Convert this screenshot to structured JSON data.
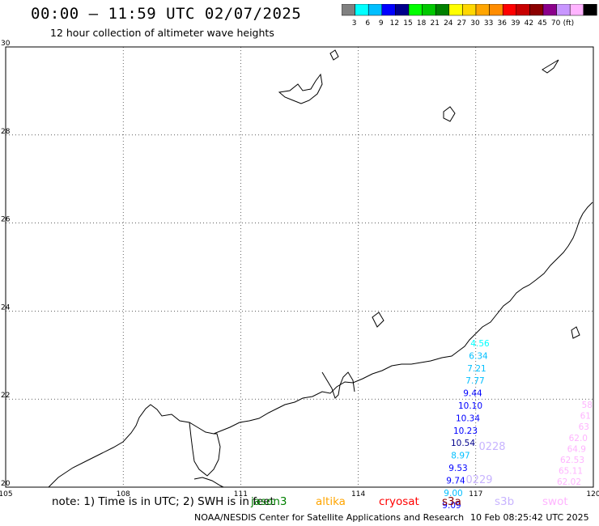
{
  "header": {
    "title": "00:00 – 11:59 UTC 02/07/2025",
    "subtitle": "12 hour collection of altimeter wave heights"
  },
  "colorbar": {
    "unit": "(ft)",
    "colors": [
      "#808080",
      "#00ffff",
      "#00bfff",
      "#0000ff",
      "#00008b",
      "#00ff00",
      "#00c800",
      "#008000",
      "#ffff00",
      "#ffd700",
      "#ffa500",
      "#ff8c00",
      "#ff0000",
      "#c80000",
      "#8b0000",
      "#8b008b",
      "#c896ff",
      "#ffb4ff",
      "#000000"
    ],
    "ticks": [
      "3",
      "6",
      "9",
      "12",
      "15",
      "18",
      "21",
      "24",
      "27",
      "30",
      "33",
      "36",
      "39",
      "42",
      "45",
      "70"
    ]
  },
  "map": {
    "x_ticks": [
      "105",
      "108",
      "111",
      "114",
      "117",
      "120"
    ],
    "y_ticks": [
      "30",
      "28",
      "26",
      "24",
      "22",
      "20"
    ],
    "lon_range": [
      105,
      120
    ],
    "lat_range": [
      20,
      30
    ],
    "observations": [
      {
        "text": "4.56",
        "color": "#00ffff"
      },
      {
        "text": "6.34",
        "color": "#00bfff"
      },
      {
        "text": "7.21",
        "color": "#00bfff"
      },
      {
        "text": "7.77",
        "color": "#00bfff"
      },
      {
        "text": "9.44",
        "color": "#0000ff"
      },
      {
        "text": "10.10",
        "color": "#0000ff"
      },
      {
        "text": "10.34",
        "color": "#0000ff"
      },
      {
        "text": "10.23",
        "color": "#0000ff"
      },
      {
        "text": "10.54",
        "color": "#00008b"
      },
      {
        "text": "8.97",
        "color": "#00bfff"
      },
      {
        "text": "9.53",
        "color": "#0000ff"
      },
      {
        "text": "9.74",
        "color": "#0000ff"
      },
      {
        "text": "9.00",
        "color": "#00bfff"
      },
      {
        "text": "9.09",
        "color": "#0000ff"
      }
    ],
    "pass_labels": [
      {
        "text": "0228",
        "color": "#c8b4ff"
      },
      {
        "text": "0229",
        "color": "#c8b4ff"
      }
    ],
    "swot_values": [
      {
        "text": "58",
        "color": "#ffb4ff"
      },
      {
        "text": "61",
        "color": "#ffb4ff"
      },
      {
        "text": "63",
        "color": "#ffb4ff"
      },
      {
        "text": "62.0",
        "color": "#ffb4ff"
      },
      {
        "text": "64.9",
        "color": "#ffb4ff"
      },
      {
        "text": "62.53",
        "color": "#ffb4ff"
      },
      {
        "text": "65.11",
        "color": "#ffb4ff"
      },
      {
        "text": "62.02",
        "color": "#ffb4ff"
      }
    ]
  },
  "footer": {
    "note": "note: 1) Time is in UTC; 2) SWH is in feet",
    "legend": [
      {
        "label": "jason3",
        "color": "#008000"
      },
      {
        "label": "altika",
        "color": "#ffa500"
      },
      {
        "label": "cryosat",
        "color": "#ff0000"
      },
      {
        "label": "s3a",
        "color": "#8b0000"
      },
      {
        "label": "s3b",
        "color": "#c8b4ff"
      },
      {
        "label": "swot",
        "color": "#ffb4ff"
      }
    ],
    "credit": "NOAA/NESDIS Center for Satellite Applications and Research",
    "timestamp": "10 Feb 08:25:42 UTC 2025"
  }
}
